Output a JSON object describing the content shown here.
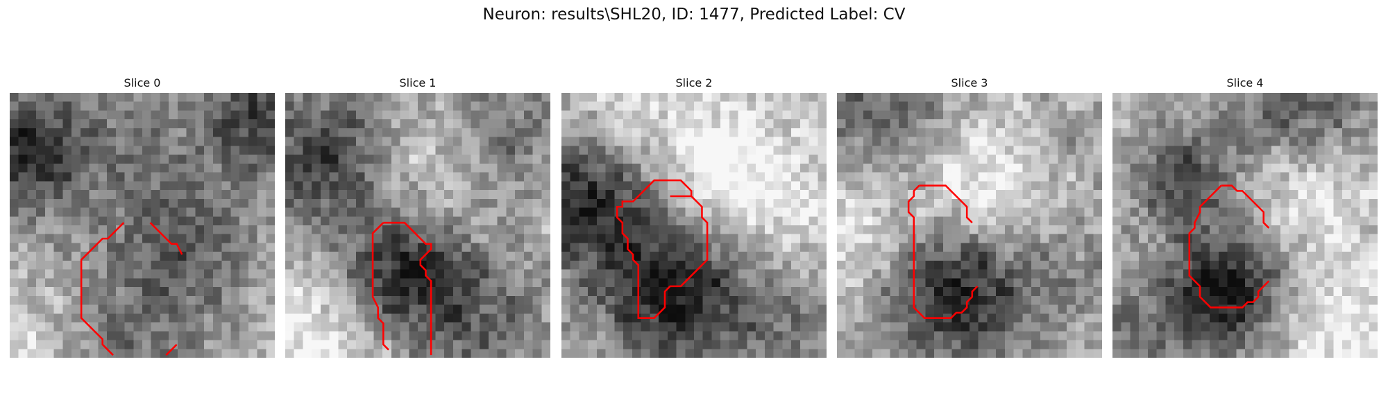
{
  "figure": {
    "title": "Neuron: results\\SHL20, ID: 1477, Predicted Label: CV"
  },
  "contour_color": "#ff0000",
  "slices": [
    {
      "title": "Slice 0",
      "contour": [
        [
          21.5,
          24.5
        ],
        [
          18.5,
          27.5
        ],
        [
          17.5,
          27.5
        ],
        [
          16.5,
          28.5
        ],
        [
          14.5,
          30.5
        ],
        [
          13.5,
          31.5
        ],
        [
          13.5,
          38.5
        ],
        [
          13.5,
          42.5
        ],
        [
          16.5,
          45.5
        ],
        [
          17.5,
          46.5
        ],
        [
          17.5,
          47.5
        ],
        [
          18.5,
          48.5
        ],
        [
          19.5,
          49.5
        ]
      ],
      "contour2": [
        [
          29.5,
          49.5
        ],
        [
          31.5,
          47.5
        ]
      ],
      "contour3": [
        [
          26.5,
          24.5
        ],
        [
          29.5,
          27.5
        ],
        [
          30.5,
          28.5
        ],
        [
          31.5,
          28.5
        ],
        [
          32.5,
          30.5
        ]
      ]
    },
    {
      "title": "Slice 1",
      "contour": [
        [
          18.5,
          24.5
        ],
        [
          22.5,
          24.5
        ],
        [
          24.5,
          26.5
        ],
        [
          25.5,
          27.5
        ],
        [
          26.5,
          28.5
        ],
        [
          27.5,
          28.5
        ],
        [
          27.5,
          29.5
        ],
        [
          26.5,
          30.5
        ],
        [
          25.5,
          31.5
        ],
        [
          25.5,
          32.5
        ],
        [
          26.5,
          33.5
        ],
        [
          26.5,
          34.5
        ],
        [
          27.5,
          35.5
        ],
        [
          27.5,
          49.5
        ]
      ],
      "contour2": [
        [
          18.5,
          24.5
        ],
        [
          16.5,
          26.5
        ],
        [
          16.5,
          34.5
        ],
        [
          16.5,
          38.5
        ],
        [
          17.5,
          40.5
        ],
        [
          17.5,
          42.5
        ],
        [
          18.5,
          43.5
        ],
        [
          18.5,
          47.5
        ],
        [
          19.5,
          48.5
        ]
      ]
    },
    {
      "title": "Slice 2",
      "contour": [
        [
          20.5,
          19.5
        ],
        [
          24.5,
          19.5
        ],
        [
          26.5,
          21.5
        ],
        [
          26.5,
          23.5
        ],
        [
          27.5,
          24.5
        ],
        [
          27.5,
          31.5
        ],
        [
          24.5,
          34.5
        ],
        [
          22.5,
          36.5
        ],
        [
          22.5,
          36.5
        ],
        [
          20.5,
          36.5
        ],
        [
          19.5,
          37.5
        ],
        [
          19.5,
          40.5
        ],
        [
          18.5,
          41.5
        ],
        [
          17.5,
          42.5
        ],
        [
          15.5,
          42.5
        ],
        [
          14.5,
          42.5
        ],
        [
          14.5,
          36.5
        ],
        [
          14.5,
          33.5
        ],
        [
          14.5,
          32.5
        ],
        [
          13.5,
          31.5
        ],
        [
          13.5,
          30.5
        ],
        [
          12.5,
          29.5
        ],
        [
          12.5,
          27.5
        ],
        [
          11.5,
          26.5
        ],
        [
          11.5,
          24.5
        ],
        [
          10.5,
          23.5
        ],
        [
          10.5,
          21.5
        ],
        [
          11.5,
          21.5
        ],
        [
          11.5,
          20.5
        ],
        [
          13.5,
          20.5
        ],
        [
          14.5,
          19.5
        ],
        [
          15.5,
          18.5
        ],
        [
          16.5,
          17.5
        ],
        [
          17.5,
          16.5
        ],
        [
          18.5,
          16.5
        ],
        [
          20.5,
          16.5
        ],
        [
          22.5,
          16.5
        ],
        [
          23.5,
          17.5
        ],
        [
          24.5,
          18.5
        ],
        [
          24.5,
          19.5
        ]
      ]
    },
    {
      "title": "Slice 3",
      "contour": [
        [
          15.5,
          17.5
        ],
        [
          20.5,
          17.5
        ],
        [
          21.5,
          18.5
        ],
        [
          22.5,
          19.5
        ],
        [
          23.5,
          20.5
        ],
        [
          24.5,
          21.5
        ],
        [
          24.5,
          23.5
        ],
        [
          25.5,
          24.5
        ]
      ],
      "contour2": [
        [
          15.5,
          17.5
        ],
        [
          14.5,
          18.5
        ],
        [
          14.5,
          19.5
        ],
        [
          13.5,
          20.5
        ],
        [
          13.5,
          22.5
        ],
        [
          14.5,
          23.5
        ],
        [
          14.5,
          25.5
        ],
        [
          14.5,
          33.5
        ],
        [
          14.5,
          40.5
        ],
        [
          16.5,
          42.5
        ],
        [
          21.5,
          42.5
        ],
        [
          22.5,
          41.5
        ],
        [
          23.5,
          41.5
        ],
        [
          24.5,
          40.5
        ],
        [
          24.5,
          39.5
        ],
        [
          25.5,
          38.5
        ],
        [
          25.5,
          37.5
        ],
        [
          26.5,
          36.5
        ]
      ]
    },
    {
      "title": "Slice 4",
      "contour": [
        [
          20.5,
          17.5
        ],
        [
          22.5,
          17.5
        ],
        [
          23.5,
          18.5
        ],
        [
          24.5,
          18.5
        ],
        [
          26.5,
          20.5
        ],
        [
          27.5,
          21.5
        ],
        [
          28.5,
          22.5
        ],
        [
          28.5,
          24.5
        ],
        [
          29.5,
          25.5
        ]
      ],
      "contour2": [
        [
          20.5,
          17.5
        ],
        [
          18.5,
          19.5
        ],
        [
          17.5,
          20.5
        ],
        [
          16.5,
          21.5
        ],
        [
          16.5,
          22.5
        ],
        [
          15.5,
          24.5
        ],
        [
          15.5,
          25.5
        ],
        [
          14.5,
          26.5
        ],
        [
          14.5,
          28.5
        ],
        [
          14.5,
          34.5
        ],
        [
          15.5,
          35.5
        ],
        [
          16.5,
          36.5
        ],
        [
          16.5,
          38.5
        ],
        [
          17.5,
          39.5
        ],
        [
          18.5,
          40.5
        ],
        [
          24.5,
          40.5
        ],
        [
          25.5,
          39.5
        ],
        [
          26.5,
          39.5
        ],
        [
          27.5,
          38.5
        ],
        [
          27.5,
          37.5
        ],
        [
          28.5,
          36.5
        ],
        [
          29.5,
          35.5
        ]
      ]
    }
  ]
}
